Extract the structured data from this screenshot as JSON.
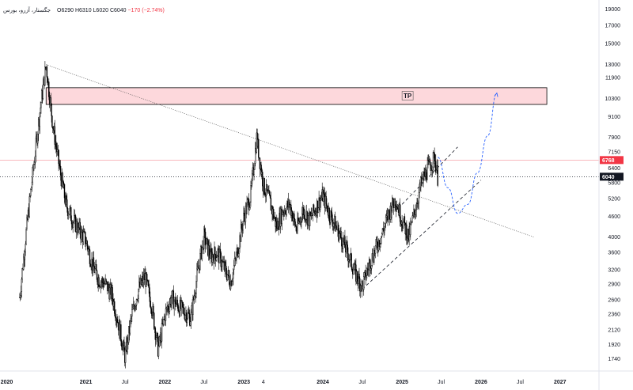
{
  "legend": {
    "symbol": "جگستار، آزرو، بورس",
    "ohlc": "O6290 H6310 L6020 C6040",
    "change": "−170 (−2.74%)"
  },
  "colors": {
    "candle": "#000000",
    "resistance_line": "#f7a1a8",
    "current_line": "#131722",
    "zone_fill": "#fdd8dc",
    "projection": "#2962ff",
    "price_tag_red": "#f23645",
    "price_tag_dark": "#131722"
  },
  "icons": [],
  "chart_data": {
    "type": "candlestick",
    "y_axis": {
      "scale": "log",
      "ticks": [
        1740,
        1920,
        2120,
        2360,
        2600,
        2900,
        3200,
        3600,
        4000,
        4600,
        5200,
        5800,
        6400,
        7150,
        7900,
        9100,
        10300,
        11900,
        13000,
        15000,
        17000,
        19000
      ],
      "range": [
        1600,
        20000
      ]
    },
    "x_axis": {
      "range": [
        "2019-12-01",
        "2027-06-30"
      ],
      "ticks": [
        {
          "label": "2020",
          "date": "2020-01-01",
          "bold": true
        },
        {
          "label": "2021",
          "date": "2021-01-01",
          "bold": true
        },
        {
          "label": "Jul",
          "date": "2021-07-01",
          "bold": false
        },
        {
          "label": "2022",
          "date": "2022-01-01",
          "bold": true
        },
        {
          "label": "Jul",
          "date": "2022-07-01",
          "bold": false
        },
        {
          "label": "2023",
          "date": "2023-01-01",
          "bold": true
        },
        {
          "label": "4",
          "date": "2023-04-01",
          "bold": false
        },
        {
          "label": "2024",
          "date": "2024-01-01",
          "bold": true
        },
        {
          "label": "Jul",
          "date": "2024-07-01",
          "bold": false
        },
        {
          "label": "2025",
          "date": "2025-01-01",
          "bold": true
        },
        {
          "label": "Jul",
          "date": "2025-07-01",
          "bold": false
        },
        {
          "label": "2026",
          "date": "2026-01-01",
          "bold": true
        },
        {
          "label": "Jul",
          "date": "2026-07-01",
          "bold": false
        },
        {
          "label": "2027",
          "date": "2027-01-01",
          "bold": true
        }
      ]
    },
    "price_path": [
      [
        "2020-03-01",
        2650
      ],
      [
        "2020-04-01",
        4200
      ],
      [
        "2020-05-01",
        6200
      ],
      [
        "2020-06-01",
        9300
      ],
      [
        "2020-07-01",
        13000
      ],
      [
        "2020-08-01",
        8600
      ],
      [
        "2020-09-01",
        6400
      ],
      [
        "2020-10-01",
        5000
      ],
      [
        "2020-11-01",
        4500
      ],
      [
        "2020-12-01",
        4200
      ],
      [
        "2021-01-01",
        3900
      ],
      [
        "2021-02-01",
        3300
      ],
      [
        "2021-03-01",
        3000
      ],
      [
        "2021-04-01",
        2900
      ],
      [
        "2021-05-01",
        2700
      ],
      [
        "2021-06-01",
        2200
      ],
      [
        "2021-07-01",
        1760
      ],
      [
        "2021-08-01",
        2350
      ],
      [
        "2021-09-01",
        2800
      ],
      [
        "2021-10-01",
        3050
      ],
      [
        "2021-11-01",
        2500
      ],
      [
        "2021-12-01",
        1850
      ],
      [
        "2022-01-01",
        2350
      ],
      [
        "2022-02-01",
        2650
      ],
      [
        "2022-03-01",
        2500
      ],
      [
        "2022-04-01",
        2400
      ],
      [
        "2022-05-01",
        2300
      ],
      [
        "2022-06-01",
        3150
      ],
      [
        "2022-07-01",
        4000
      ],
      [
        "2022-08-01",
        3500
      ],
      [
        "2022-09-01",
        3600
      ],
      [
        "2022-10-01",
        3250
      ],
      [
        "2022-11-01",
        2950
      ],
      [
        "2022-12-01",
        3600
      ],
      [
        "2023-01-01",
        4600
      ],
      [
        "2023-02-01",
        5300
      ],
      [
        "2023-03-01",
        7900
      ],
      [
        "2023-04-01",
        5700
      ],
      [
        "2023-05-01",
        5100
      ],
      [
        "2023-06-01",
        4300
      ],
      [
        "2023-07-01",
        4800
      ],
      [
        "2023-08-01",
        5000
      ],
      [
        "2023-09-01",
        4200
      ],
      [
        "2023-10-01",
        4800
      ],
      [
        "2023-11-01",
        4500
      ],
      [
        "2023-12-01",
        4900
      ],
      [
        "2024-01-01",
        5300
      ],
      [
        "2024-02-01",
        4700
      ],
      [
        "2024-03-01",
        4300
      ],
      [
        "2024-04-01",
        3900
      ],
      [
        "2024-05-01",
        3500
      ],
      [
        "2024-06-01",
        3100
      ],
      [
        "2024-07-01",
        2850
      ],
      [
        "2024-08-01",
        3300
      ],
      [
        "2024-09-01",
        3700
      ],
      [
        "2024-10-01",
        4100
      ],
      [
        "2024-11-01",
        4700
      ],
      [
        "2024-12-01",
        5200
      ],
      [
        "2025-01-01",
        4500
      ],
      [
        "2025-02-01",
        4000
      ],
      [
        "2025-03-01",
        4800
      ],
      [
        "2025-04-01",
        5800
      ],
      [
        "2025-05-01",
        6400
      ],
      [
        "2025-06-01",
        6900
      ],
      [
        "2025-06-15",
        6040
      ]
    ],
    "drawings": {
      "downtrend_line": {
        "from": [
          "2020-07-01",
          13000
        ],
        "to": [
          "2026-09-01",
          4000
        ]
      },
      "channel_lower": {
        "from": [
          "2024-07-01",
          2800
        ],
        "to": [
          "2026-01-01",
          5900
        ]
      },
      "channel_upper": {
        "from": [
          "2025-01-01",
          5000
        ],
        "to": [
          "2025-09-15",
          7400
        ]
      },
      "tp_zone": {
        "label": "TP",
        "x_from": "2020-07-01",
        "x_to": "2026-11-01",
        "y_low": 9900,
        "y_high": 11100
      },
      "projection_path": [
        [
          "2025-06-15",
          6900
        ],
        [
          "2025-08-01",
          5600
        ],
        [
          "2025-09-15",
          4700
        ],
        [
          "2025-11-01",
          5000
        ],
        [
          "2025-12-15",
          6200
        ],
        [
          "2026-02-01",
          8000
        ],
        [
          "2026-03-15",
          10700
        ]
      ]
    },
    "horizontal_lines": [
      {
        "value": 6768,
        "label": "6768",
        "style": "solid",
        "color": "#f7a1a8"
      },
      {
        "value": 6040,
        "label": "6040",
        "style": "dotted",
        "color": "#131722"
      }
    ]
  }
}
